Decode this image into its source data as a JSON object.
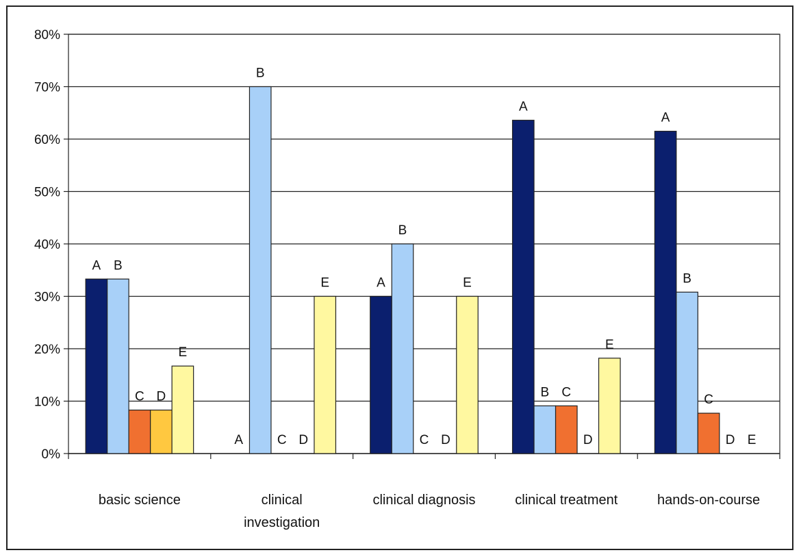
{
  "chart_data": {
    "type": "bar",
    "categories": [
      "basic science",
      "clinical investigation",
      "clinical diagnosis",
      "clinical treatment",
      "hands-on-course"
    ],
    "y_ticks": [
      "0%",
      "10%",
      "20%",
      "30%",
      "40%",
      "50%",
      "60%",
      "70%",
      "80%"
    ],
    "ylim": [
      0,
      80
    ],
    "grid": true,
    "series": [
      {
        "name": "A",
        "color": "#0b1f6e",
        "values": [
          33.3,
          0,
          30,
          63.6,
          61.5
        ]
      },
      {
        "name": "B",
        "color": "#a8d0f8",
        "values": [
          33.3,
          70,
          40,
          9.1,
          30.8
        ]
      },
      {
        "name": "C",
        "color": "#f07030",
        "values": [
          8.3,
          0,
          0,
          9.1,
          7.7
        ]
      },
      {
        "name": "D",
        "color": "#ffc840",
        "values": [
          8.3,
          0,
          0,
          0,
          0
        ]
      },
      {
        "name": "E",
        "color": "#fff8a0",
        "values": [
          16.7,
          30,
          30,
          18.2,
          0
        ]
      }
    ]
  }
}
